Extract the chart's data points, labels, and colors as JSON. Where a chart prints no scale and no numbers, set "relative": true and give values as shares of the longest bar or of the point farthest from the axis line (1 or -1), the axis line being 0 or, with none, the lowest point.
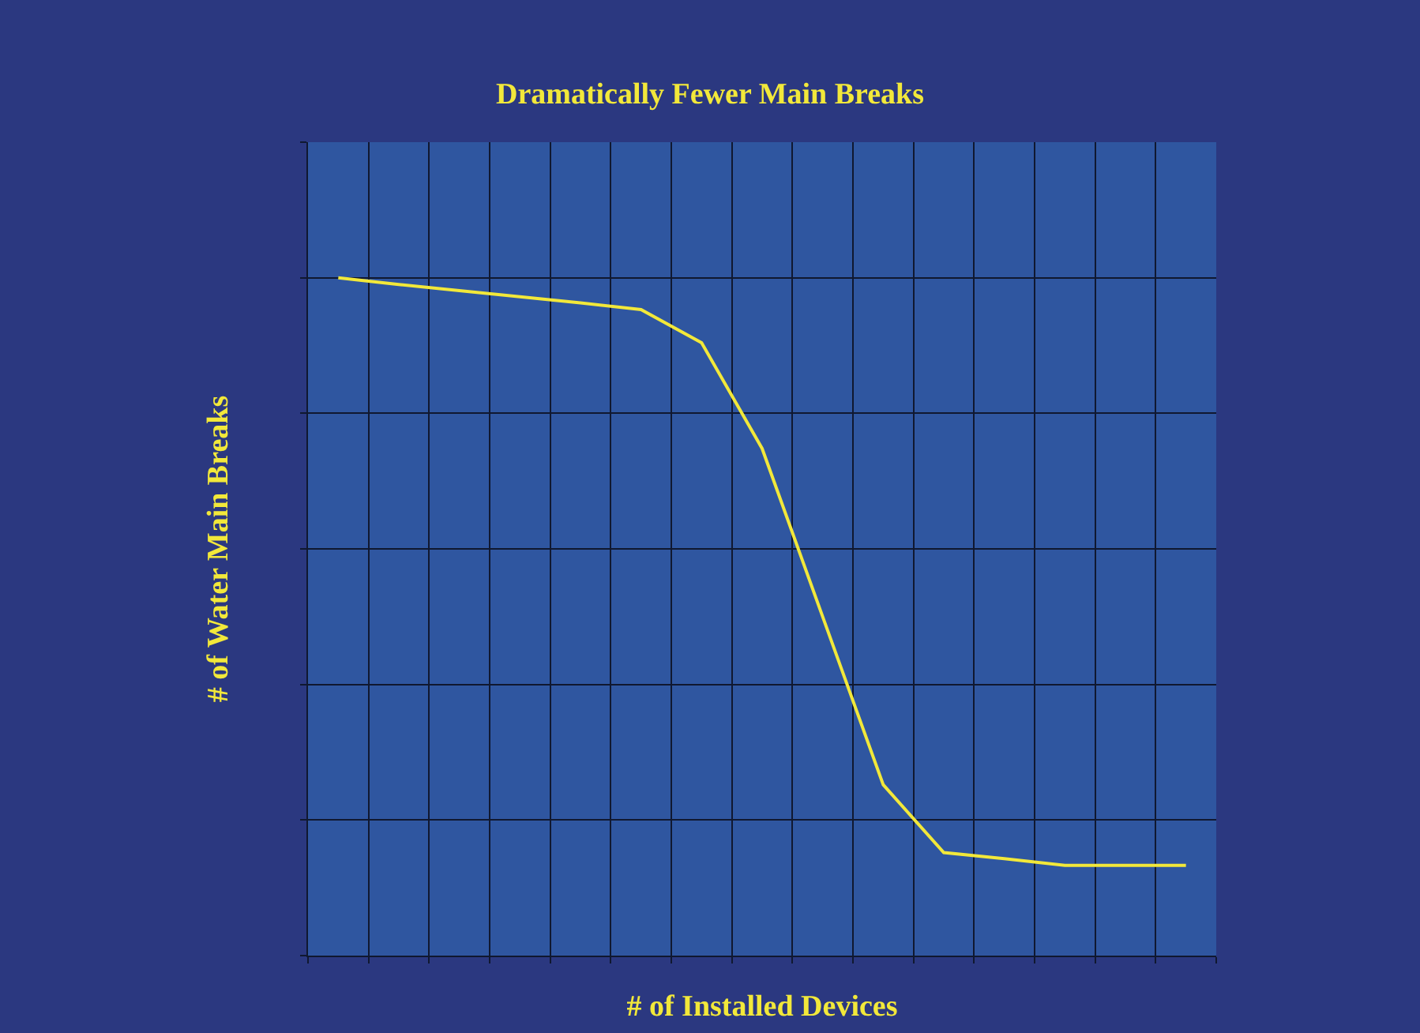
{
  "chart_data": {
    "type": "line",
    "title": "Dramatically Fewer Main Breaks",
    "xlabel": "# of Installed Devices",
    "ylabel": "# of Water Main Breaks",
    "relative": true,
    "grid": true,
    "marker": "none",
    "line_style": "solid",
    "categories": [
      null,
      null,
      null,
      null,
      null,
      null,
      null,
      null,
      null,
      null,
      null,
      null,
      null,
      null,
      null
    ],
    "series": [
      {
        "color": "#f2e83a",
        "values": [
          1.0,
          0.99,
          0.981,
          0.972,
          0.963,
          0.953,
          0.904,
          0.748,
          0.5,
          0.252,
          0.152,
          0.143,
          0.133,
          0.133,
          0.133
        ]
      }
    ]
  }
}
